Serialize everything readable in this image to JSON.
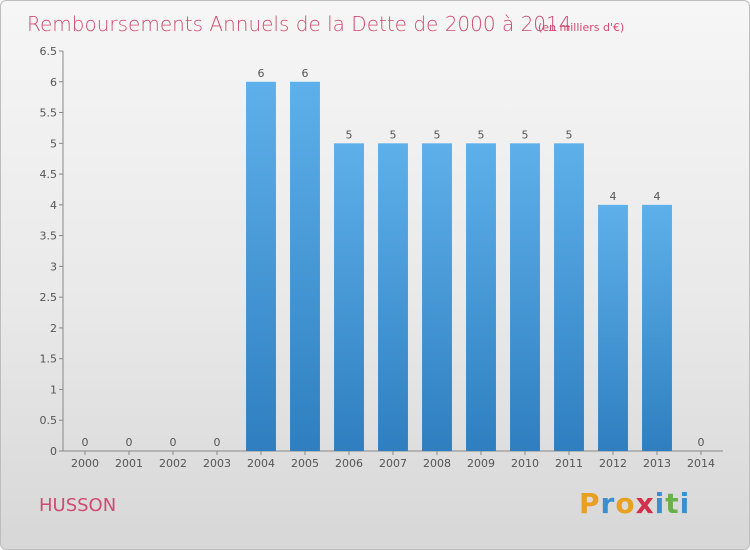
{
  "chart_data": {
    "type": "bar",
    "title": "Remboursements Annuels de la Dette de 2000 à 2014",
    "subtitle": "(en milliers d'€)",
    "categories": [
      "2000",
      "2001",
      "2002",
      "2003",
      "2004",
      "2005",
      "2006",
      "2007",
      "2008",
      "2009",
      "2010",
      "2011",
      "2012",
      "2013",
      "2014"
    ],
    "values": [
      0,
      0,
      0,
      0,
      6,
      6,
      5,
      5,
      5,
      5,
      5,
      5,
      4,
      4,
      0
    ],
    "yticks": [
      "0",
      "0.5",
      "1",
      "1.5",
      "2",
      "2.5",
      "3",
      "3.5",
      "4",
      "4.5",
      "5",
      "5.5",
      "6",
      "6.5"
    ],
    "ylim": [
      0,
      6.5
    ],
    "xlabel": "",
    "ylabel": "",
    "bar_color": "#4a9fdf"
  },
  "footer": {
    "commune": "HUSSON",
    "brand_letters": [
      "P",
      "r",
      "o",
      "x",
      "i",
      "t",
      "i"
    ],
    "brand_colors": [
      "#e8a020",
      "#3a8fd0",
      "#e8a020",
      "#d0304a",
      "#3a8fd0",
      "#6ab04c",
      "#3a8fd0"
    ]
  }
}
